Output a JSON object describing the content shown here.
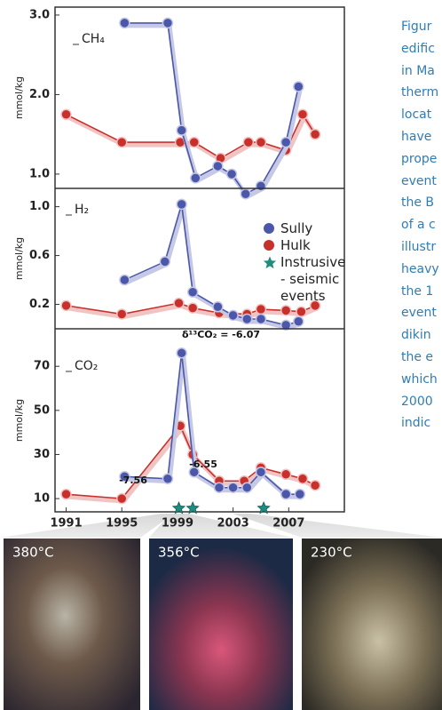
{
  "chart_data": [
    {
      "type": "line",
      "title": "CH₄",
      "y_label": "mmol/kg",
      "xlim": [
        1990.2,
        2011
      ],
      "ylim": [
        0.82,
        3.1
      ],
      "yticks": [
        {
          "value": 1.0,
          "label": "1.0"
        },
        {
          "value": 2.0,
          "label": "2.0"
        },
        {
          "value": 3.0,
          "label": "3.0"
        }
      ],
      "series": [
        {
          "color": "#4b57a8",
          "x": [
            1995.2,
            1998.3,
            1999.3,
            2000.3,
            2001.9,
            2002.9,
            2003.9,
            2005,
            2006.8,
            2007.7
          ],
          "values": [
            2.9,
            2.9,
            1.55,
            0.95,
            1.1,
            1.0,
            0.75,
            0.85,
            1.4,
            2.1
          ]
        },
        {
          "color": "#c8302c",
          "x": [
            1991,
            1995,
            1999.2,
            2000.2,
            2002.1,
            2004.1,
            2005,
            2006.8,
            2008,
            2008.9
          ],
          "values": [
            1.75,
            1.4,
            1.4,
            1.4,
            1.2,
            1.4,
            1.4,
            1.3,
            1.75,
            1.5
          ]
        }
      ]
    },
    {
      "type": "line",
      "title": "H₂",
      "y_label": "mmol/kg",
      "xlim": [
        1990.2,
        2011
      ],
      "ylim": [
        0.0,
        1.15
      ],
      "yticks": [
        0.2,
        0.6,
        {
          "value": 1.0,
          "label": "1.0"
        }
      ],
      "series": [
        {
          "name": "Sully",
          "color": "#4b57a8",
          "x": [
            1995.2,
            1998.1,
            1999.3,
            2000.1,
            2001.9,
            2003,
            2004,
            2005,
            2006.8,
            2007.7
          ],
          "values": [
            0.4,
            0.55,
            1.02,
            0.3,
            0.18,
            0.11,
            0.08,
            0.08,
            0.03,
            0.06
          ]
        },
        {
          "name": "Hulk",
          "color": "#c8302c",
          "x": [
            1991,
            1995,
            1999.1,
            2000.1,
            2002,
            2004,
            2005,
            2006.8,
            2007.9,
            2008.9
          ],
          "values": [
            0.19,
            0.12,
            0.21,
            0.17,
            0.13,
            0.12,
            0.16,
            0.15,
            0.14,
            0.19
          ]
        }
      ],
      "events": {
        "name": "Instrusive - seismic events",
        "color": "#1e8c7e",
        "x": [
          1999.1,
          2000.1,
          2005.2
        ]
      }
    },
    {
      "type": "line",
      "title": "CO₂",
      "y_label": "mmol/kg",
      "xlim": [
        1990.2,
        2011
      ],
      "ylim": [
        4,
        87
      ],
      "xticks": [
        1991,
        1995,
        1999,
        2003,
        2007
      ],
      "yticks": [
        10,
        30,
        50,
        70
      ],
      "annotations": [
        "δ¹³CO₂ = -6.07",
        "-7.56",
        "-6.55"
      ],
      "series": [
        {
          "color": "#4b57a8",
          "x": [
            1995.2,
            1998.3,
            1999.3,
            2000.2,
            2002,
            2003,
            2004,
            2005,
            2006.8,
            2007.8
          ],
          "values": [
            20,
            19,
            76,
            22,
            15,
            15,
            15,
            22,
            12,
            12
          ]
        },
        {
          "color": "#c8302c",
          "x": [
            1991,
            1995,
            1999.2,
            2000.1,
            2002,
            2003.8,
            2005,
            2006.8,
            2008,
            2008.9
          ],
          "values": [
            12,
            10,
            43,
            30,
            18,
            18,
            24,
            21,
            19,
            16
          ]
        }
      ]
    }
  ],
  "caption_lines": [
    "Figur",
    "edific",
    "in Ma",
    "therm",
    "locat",
    "have",
    "prope",
    "event",
    "the B",
    "of a c",
    "illustr",
    "heavy",
    "the 1",
    "event",
    "dikin",
    "the e",
    "which",
    "2000",
    "indic"
  ],
  "photos": [
    {
      "label": "380°C"
    },
    {
      "label": "356°C"
    },
    {
      "label": "230°C"
    }
  ]
}
